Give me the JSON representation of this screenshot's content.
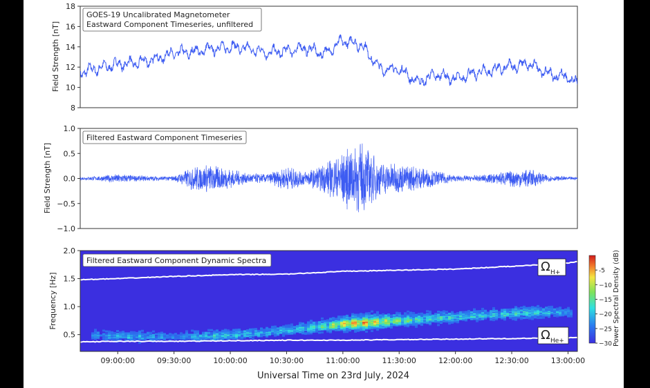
{
  "chart_data": [
    {
      "type": "line",
      "title": "GOES-19 Uncalibrated Magnetometer\n Eastward Component Timeseries, unfiltered",
      "xlabel": "",
      "ylabel": "Field Strength [nT]",
      "ylim": [
        8,
        18
      ],
      "yticks": [
        "8",
        "10",
        "12",
        "14",
        "16",
        "18"
      ],
      "line_color": "#3d5cf2",
      "series": [
        {
          "x": [
            "08:40",
            "08:50",
            "09:00",
            "09:10",
            "09:20",
            "09:30",
            "09:40",
            "09:50",
            "10:00",
            "10:10",
            "10:20",
            "10:30",
            "10:40",
            "10:50",
            "11:00",
            "11:10",
            "11:20",
            "11:30",
            "11:40",
            "11:50",
            "12:00",
            "12:10",
            "12:20",
            "12:30",
            "12:40",
            "12:50",
            "13:00",
            "13:05"
          ],
          "values": [
            11.5,
            11.9,
            12.3,
            12.4,
            12.8,
            13.4,
            13.5,
            13.8,
            14.0,
            13.8,
            13.4,
            13.6,
            13.9,
            13.3,
            14.6,
            14.2,
            11.8,
            11.8,
            10.5,
            11.3,
            10.8,
            11.4,
            11.7,
            12.1,
            12.3,
            11.3,
            11.0,
            10.2
          ]
        }
      ]
    },
    {
      "type": "line",
      "title": "Filtered Eastward Component Timeseries",
      "xlabel": "",
      "ylabel": "Field Strength [nT]",
      "ylim": [
        -1.0,
        1.0
      ],
      "yticks": [
        "−1.0",
        "−0.5",
        "0.0",
        "0.5",
        "1.0"
      ],
      "line_color": "#3d5cf2",
      "series": [
        {
          "x": [
            "08:40",
            "08:50",
            "09:00",
            "09:10",
            "09:20",
            "09:30",
            "09:40",
            "09:50",
            "10:00",
            "10:10",
            "10:20",
            "10:30",
            "10:40",
            "10:50",
            "11:00",
            "11:10",
            "11:20",
            "11:30",
            "11:40",
            "11:50",
            "12:00",
            "12:10",
            "12:20",
            "12:30",
            "12:40",
            "12:50",
            "13:00",
            "13:05"
          ],
          "amplitude": [
            0.03,
            0.05,
            0.1,
            0.06,
            0.05,
            0.05,
            0.25,
            0.3,
            0.2,
            0.1,
            0.1,
            0.25,
            0.15,
            0.3,
            0.6,
            0.75,
            0.35,
            0.3,
            0.25,
            0.15,
            0.06,
            0.06,
            0.1,
            0.18,
            0.2,
            0.06,
            0.04,
            0.03
          ]
        }
      ]
    },
    {
      "type": "heatmap",
      "title": "Filtered Eastward Component Dynamic Spectra",
      "xlabel": "Universal Time on 23rd July, 2024",
      "ylabel": "Frequency [Hz]",
      "ylim": [
        0.2,
        2.0
      ],
      "yticks": [
        "0.5",
        "1.0",
        "1.5",
        "2.0"
      ],
      "xticks": [
        "09:00:00",
        "09:30:00",
        "10:00:00",
        "10:30:00",
        "11:00:00",
        "11:30:00",
        "12:00:00",
        "12:30:00",
        "13:00:00"
      ],
      "colorbar": {
        "label": "Power Spectral Density (dB)",
        "ticks": [
          "-5",
          "−10",
          "−15",
          "−20",
          "−25",
          "−30"
        ],
        "range": [
          -30,
          0
        ]
      },
      "background_level_db": -30,
      "annotations": [
        {
          "label": "Ω",
          "subscript": "H+"
        },
        {
          "label": "Ω",
          "subscript": "He+"
        }
      ],
      "gyro_lines": {
        "H+": {
          "x": [
            "08:40",
            "09:00",
            "09:30",
            "10:00",
            "10:30",
            "11:00",
            "11:30",
            "12:00",
            "12:30",
            "13:00",
            "13:05"
          ],
          "freq": [
            1.48,
            1.5,
            1.54,
            1.57,
            1.58,
            1.63,
            1.65,
            1.67,
            1.72,
            1.78,
            1.8
          ]
        },
        "He+": {
          "x": [
            "08:40",
            "09:00",
            "09:30",
            "10:00",
            "10:30",
            "11:00",
            "11:30",
            "12:00",
            "12:30",
            "13:00",
            "13:05"
          ],
          "freq": [
            0.37,
            0.38,
            0.38,
            0.39,
            0.4,
            0.4,
            0.41,
            0.42,
            0.43,
            0.44,
            0.45
          ]
        }
      },
      "emission": {
        "x": [
          "08:50",
          "09:10",
          "09:30",
          "09:50",
          "10:10",
          "10:30",
          "10:50",
          "11:00",
          "11:10",
          "11:20",
          "11:40",
          "12:00",
          "12:20",
          "12:40",
          "13:00"
        ],
        "center_freq": [
          0.48,
          0.47,
          0.46,
          0.48,
          0.52,
          0.58,
          0.66,
          0.7,
          0.72,
          0.74,
          0.78,
          0.82,
          0.86,
          0.9,
          0.9
        ],
        "peak_db": [
          -22,
          -20,
          -24,
          -18,
          -20,
          -20,
          -14,
          -6,
          -4,
          -8,
          -16,
          -18,
          -18,
          -16,
          -24
        ]
      }
    }
  ],
  "x_range": [
    "08:40",
    "13:05"
  ]
}
